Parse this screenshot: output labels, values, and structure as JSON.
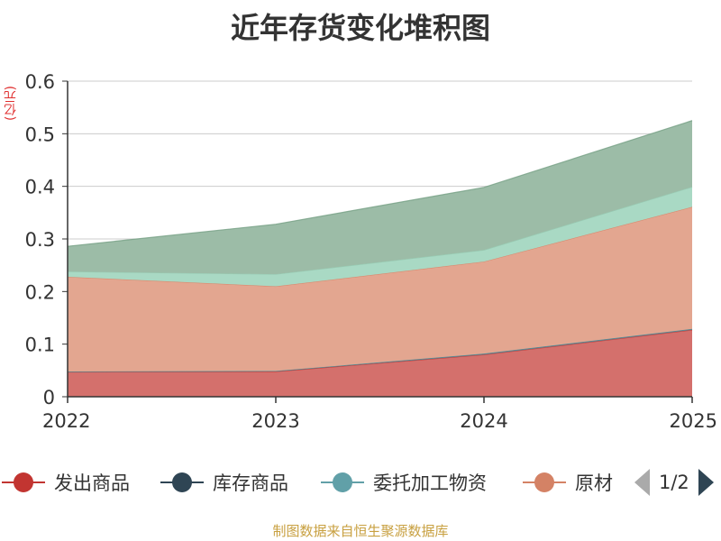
{
  "chart_data": {
    "type": "area",
    "stacked": true,
    "title": "近年存货变化堆积图",
    "ylabel": "(亿元)",
    "xlabel": "",
    "categories": [
      "2022",
      "2023",
      "2024",
      "2025"
    ],
    "ylim": [
      0,
      0.6
    ],
    "yticks": [
      "0",
      "0.1",
      "0.2",
      "0.3",
      "0.4",
      "0.5",
      "0.6"
    ],
    "grid": true,
    "series": [
      {
        "name": "发出商品",
        "values": [
          0.047,
          0.048,
          0.08,
          0.127
        ],
        "color": "#c23531",
        "fill": "#d4706c"
      },
      {
        "name": "库存商品",
        "values": [
          0.001,
          0.001,
          0.002,
          0.002
        ],
        "color": "#2f4554",
        "fill": "#6b7d89"
      },
      {
        "name": "委托加工物资",
        "values": [
          0.0,
          0.0,
          0.0,
          0.0
        ],
        "color": "#61a0a8",
        "fill": "#8ec0c6"
      },
      {
        "name": "原材",
        "values": [
          0.18,
          0.161,
          0.175,
          0.232
        ],
        "color": "#d48265",
        "fill": "#e3a690"
      },
      {
        "name": "",
        "values": [
          0.01,
          0.023,
          0.022,
          0.038
        ],
        "color": "#91c7ae",
        "fill": "#a9d9c4"
      },
      {
        "name": "",
        "values": [
          0.048,
          0.095,
          0.119,
          0.126
        ],
        "color": "#749f83",
        "fill": "#9cbca7"
      }
    ],
    "legend": {
      "items": [
        "发出商品",
        "库存商品",
        "委托加工物资",
        "原材"
      ],
      "page": "1/2",
      "position": "bottom"
    }
  },
  "source": "制图数据来自恒生聚源数据库"
}
